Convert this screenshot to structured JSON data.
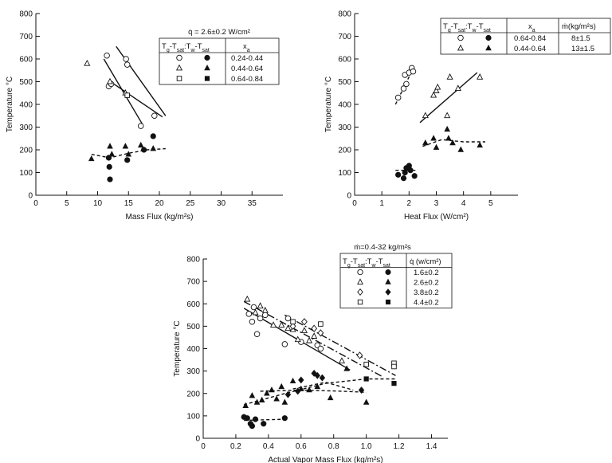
{
  "chart_data": [
    {
      "type": "scatter",
      "xlabel": "Mass Flux (kg/m²s)",
      "ylabel": "Temperature °C",
      "xlim": [
        0,
        40
      ],
      "ylim": [
        0,
        800
      ],
      "xticks": [
        "0",
        "5",
        "10",
        "15",
        "20",
        "25",
        "30",
        "35"
      ],
      "yticks": [
        "0",
        "100",
        "200",
        "300",
        "400",
        "500",
        "600",
        "700",
        "800"
      ],
      "annotation": "q̇ = 2.6±0.2 W/cm²",
      "legend": {
        "headers": [
          "Tg-Tsat:Tw-Tsat",
          "xa"
        ],
        "rows": [
          {
            "open": "circle",
            "filled": "circle",
            "value": "0.24-0.44"
          },
          {
            "open": "triangle",
            "filled": "triangle",
            "value": "0.44-0.64"
          },
          {
            "open": "square",
            "filled": "square",
            "value": "0.64-0.84"
          }
        ]
      },
      "series": [
        {
          "marker": "circle",
          "filled": false,
          "points": [
            [
              11.5,
              615
            ],
            [
              11.8,
              480
            ],
            [
              12.2,
              490
            ],
            [
              14.6,
              600
            ],
            [
              14.8,
              575
            ],
            [
              17,
              305
            ],
            [
              19.2,
              350
            ]
          ]
        },
        {
          "marker": "triangle",
          "filled": false,
          "points": [
            [
              8.3,
              580
            ],
            [
              12,
              500
            ],
            [
              14.5,
              450
            ]
          ]
        },
        {
          "marker": "square",
          "filled": false,
          "points": [
            [
              14.8,
              440
            ]
          ]
        },
        {
          "marker": "circle",
          "filled": true,
          "points": [
            [
              11.8,
              165
            ],
            [
              11.9,
              125
            ],
            [
              12,
              70
            ],
            [
              14.8,
              155
            ],
            [
              17.5,
              200
            ],
            [
              19,
              260
            ]
          ]
        },
        {
          "marker": "triangle",
          "filled": true,
          "points": [
            [
              9,
              160
            ],
            [
              12,
              215
            ],
            [
              12.3,
              180
            ],
            [
              14.5,
              215
            ],
            [
              15,
              180
            ],
            [
              17,
              220
            ],
            [
              19,
              205
            ]
          ]
        },
        {
          "marker": "square",
          "filled": true,
          "points": []
        }
      ],
      "lines": [
        {
          "style": "solid",
          "points": [
            [
              11.8,
              505
            ],
            [
              20.5,
              345
            ]
          ]
        },
        {
          "style": "solid",
          "points": [
            [
              11,
              600
            ],
            [
              17.2,
              315
            ]
          ]
        },
        {
          "style": "solid",
          "points": [
            [
              13,
              655
            ],
            [
              21,
              350
            ]
          ]
        },
        {
          "style": "dashed",
          "points": [
            [
              9,
              180
            ],
            [
              12,
              165
            ],
            [
              15,
              185
            ],
            [
              18,
              200
            ],
            [
              21,
              205
            ]
          ]
        }
      ]
    },
    {
      "type": "scatter",
      "xlabel": "Heat Flux (W/cm²)",
      "ylabel": "Temperature °C",
      "xlim": [
        0,
        6
      ],
      "ylim": [
        0,
        800
      ],
      "xticks": [
        "0",
        "1",
        "2",
        "3",
        "4",
        "5"
      ],
      "yticks": [
        "0",
        "100",
        "200",
        "300",
        "400",
        "500",
        "600",
        "700",
        "800"
      ],
      "legend": {
        "headers": [
          "Tg-Tsat:Tw-Tsat",
          "xa",
          "ṁ(kg/m²s)"
        ],
        "rows": [
          {
            "open": "circle",
            "filled": "circle",
            "value": "0.64-0.84",
            "value2": "8±1.5"
          },
          {
            "open": "triangle",
            "filled": "triangle",
            "value": "0.44-0.64",
            "value2": "13±1.5"
          }
        ]
      },
      "series": [
        {
          "marker": "circle",
          "filled": false,
          "points": [
            [
              1.6,
              430
            ],
            [
              1.8,
              470
            ],
            [
              1.85,
              530
            ],
            [
              1.9,
              490
            ],
            [
              2,
              540
            ],
            [
              2.1,
              560
            ],
            [
              2.15,
              545
            ]
          ]
        },
        {
          "marker": "triangle",
          "filled": false,
          "points": [
            [
              2.6,
              350
            ],
            [
              2.9,
              440
            ],
            [
              3,
              460
            ],
            [
              3.05,
              475
            ],
            [
              3.4,
              350
            ],
            [
              3.5,
              520
            ],
            [
              3.8,
              470
            ],
            [
              4.6,
              520
            ]
          ]
        },
        {
          "marker": "circle",
          "filled": true,
          "points": [
            [
              1.6,
              90
            ],
            [
              1.8,
              75
            ],
            [
              1.85,
              100
            ],
            [
              1.9,
              120
            ],
            [
              2,
              130
            ],
            [
              2.05,
              110
            ],
            [
              2.2,
              85
            ]
          ]
        },
        {
          "marker": "triangle",
          "filled": true,
          "points": [
            [
              2.6,
              230
            ],
            [
              2.9,
              250
            ],
            [
              3,
              210
            ],
            [
              3.4,
              290
            ],
            [
              3.45,
              250
            ],
            [
              3.6,
              230
            ],
            [
              3.9,
              200
            ],
            [
              4.6,
              220
            ]
          ]
        }
      ],
      "lines": [
        {
          "style": "dashed",
          "points": [
            [
              1.5,
              400
            ],
            [
              2.2,
              570
            ]
          ]
        },
        {
          "style": "solid",
          "points": [
            [
              2.4,
              320
            ],
            [
              4.5,
              540
            ]
          ]
        },
        {
          "style": "dashed",
          "points": [
            [
              1.5,
              110
            ],
            [
              2.3,
              110
            ]
          ]
        },
        {
          "style": "dashed",
          "points": [
            [
              2.5,
              215
            ],
            [
              3.2,
              245
            ],
            [
              4,
              235
            ],
            [
              4.8,
              235
            ]
          ]
        }
      ]
    },
    {
      "type": "scatter",
      "xlabel": "Actual Vapor Mass Flux (kg/m²s)",
      "ylabel": "Temperature °C",
      "xlim": [
        0,
        1.5
      ],
      "ylim": [
        0,
        800
      ],
      "xticks": [
        "0",
        "0.2",
        "0.4",
        "0.6",
        "0.8",
        "1.0",
        "1.2",
        "1.4"
      ],
      "yticks": [
        "0",
        "100",
        "200",
        "300",
        "400",
        "500",
        "600",
        "700",
        "800"
      ],
      "annotation": "ṁ=0.4-32 kg/m²s",
      "legend": {
        "headers": [
          "Tg-Tsat:Tw-Tsat",
          "q̇ (w/cm²)"
        ],
        "rows": [
          {
            "open": "circle",
            "filled": "circle",
            "value": "1.6±0.2"
          },
          {
            "open": "triangle",
            "filled": "triangle",
            "value": "2.6±0.2"
          },
          {
            "open": "diamond",
            "filled": "diamond",
            "value": "3.8±0.2"
          },
          {
            "open": "square",
            "filled": "square",
            "value": "4.4±0.2"
          }
        ]
      },
      "series": [
        {
          "marker": "circle",
          "filled": false,
          "points": [
            [
              0.28,
              555
            ],
            [
              0.3,
              520
            ],
            [
              0.31,
              585
            ],
            [
              0.33,
              465
            ],
            [
              0.35,
              535
            ],
            [
              0.38,
              550
            ],
            [
              0.5,
              420
            ],
            [
              0.52,
              535
            ],
            [
              0.6,
              430
            ],
            [
              0.7,
              415
            ],
            [
              0.72,
              400
            ]
          ]
        },
        {
          "marker": "triangle",
          "filled": false,
          "points": [
            [
              0.27,
              620
            ],
            [
              0.32,
              560
            ],
            [
              0.35,
              590
            ],
            [
              0.38,
              570
            ],
            [
              0.43,
              505
            ],
            [
              0.48,
              505
            ],
            [
              0.52,
              490
            ],
            [
              0.55,
              485
            ],
            [
              0.58,
              440
            ],
            [
              0.62,
              480
            ],
            [
              0.65,
              435
            ],
            [
              0.68,
              455
            ],
            [
              0.85,
              345
            ]
          ]
        },
        {
          "marker": "diamond",
          "filled": false,
          "points": [
            [
              0.55,
              500
            ],
            [
              0.62,
              520
            ],
            [
              0.68,
              490
            ],
            [
              0.72,
              470
            ],
            [
              0.96,
              370
            ]
          ]
        },
        {
          "marker": "square",
          "filled": false,
          "points": [
            [
              0.55,
              520
            ],
            [
              0.72,
              510
            ],
            [
              1.0,
              330
            ],
            [
              1.17,
              335
            ],
            [
              1.17,
              320
            ]
          ]
        },
        {
          "marker": "circle",
          "filled": true,
          "points": [
            [
              0.25,
              95
            ],
            [
              0.27,
              90
            ],
            [
              0.29,
              65
            ],
            [
              0.3,
              55
            ],
            [
              0.32,
              85
            ],
            [
              0.37,
              65
            ],
            [
              0.5,
              90
            ]
          ]
        },
        {
          "marker": "triangle",
          "filled": true,
          "points": [
            [
              0.26,
              145
            ],
            [
              0.3,
              190
            ],
            [
              0.33,
              160
            ],
            [
              0.36,
              170
            ],
            [
              0.39,
              200
            ],
            [
              0.42,
              215
            ],
            [
              0.45,
              175
            ],
            [
              0.48,
              230
            ],
            [
              0.5,
              160
            ],
            [
              0.55,
              255
            ],
            [
              0.6,
              220
            ],
            [
              0.65,
              215
            ],
            [
              0.7,
              230
            ],
            [
              0.78,
              180
            ],
            [
              0.88,
              310
            ],
            [
              1.0,
              160
            ]
          ]
        },
        {
          "marker": "diamond",
          "filled": true,
          "points": [
            [
              0.52,
              195
            ],
            [
              0.58,
              210
            ],
            [
              0.6,
              260
            ],
            [
              0.68,
              290
            ],
            [
              0.7,
              280
            ],
            [
              0.73,
              270
            ],
            [
              0.97,
              215
            ]
          ]
        },
        {
          "marker": "square",
          "filled": true,
          "points": [
            [
              1.0,
              265
            ],
            [
              1.17,
              245
            ]
          ]
        }
      ],
      "lines": [
        {
          "style": "solid",
          "points": [
            [
              0.25,
              580
            ],
            [
              0.9,
              305
            ]
          ]
        },
        {
          "style": "dash-dot",
          "points": [
            [
              0.25,
              610
            ],
            [
              1.1,
              275
            ]
          ]
        },
        {
          "style": "dash-dot",
          "points": [
            [
              0.5,
              550
            ],
            [
              1.18,
              280
            ]
          ]
        },
        {
          "style": "dashed",
          "points": [
            [
              0.25,
              80
            ],
            [
              0.5,
              85
            ]
          ]
        },
        {
          "style": "dashed",
          "points": [
            [
              0.35,
              210
            ],
            [
              0.6,
              215
            ],
            [
              0.85,
              210
            ],
            [
              1.0,
              205
            ]
          ]
        },
        {
          "style": "dashed",
          "points": [
            [
              0.55,
              220
            ],
            [
              0.75,
              250
            ],
            [
              0.92,
              215
            ]
          ]
        },
        {
          "style": "dashed",
          "points": [
            [
              0.25,
              150
            ],
            [
              0.5,
              200
            ],
            [
              0.75,
              245
            ],
            [
              1.0,
              265
            ],
            [
              1.18,
              265
            ]
          ]
        }
      ]
    }
  ]
}
